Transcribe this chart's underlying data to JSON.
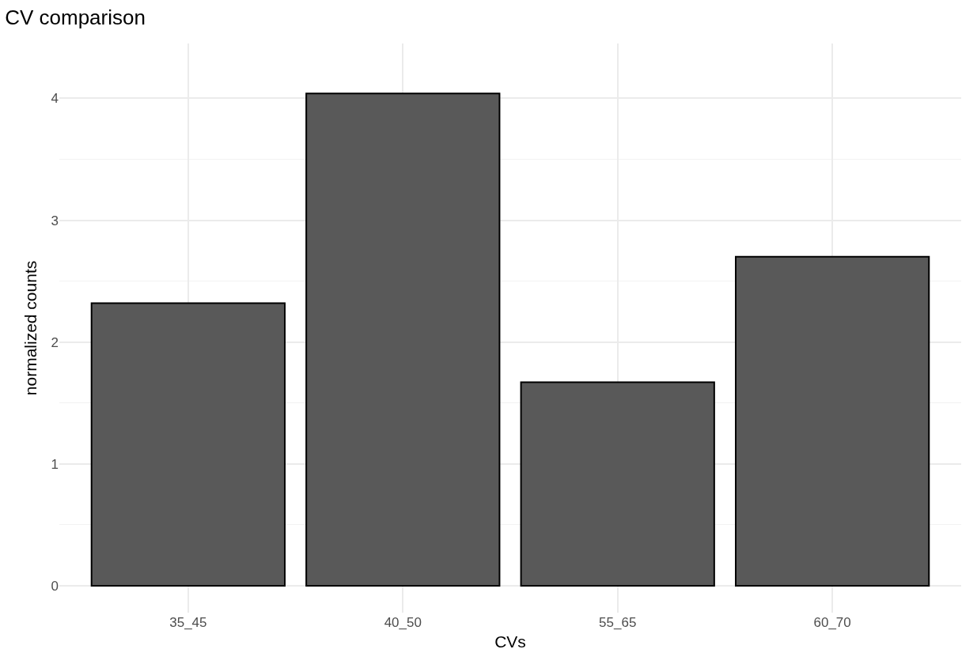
{
  "chart_data": {
    "type": "bar",
    "title": "CV comparison",
    "xlabel": "CVs",
    "ylabel": "normalized counts",
    "categories": [
      "35_45",
      "40_50",
      "55_65",
      "60_70"
    ],
    "values": [
      2.32,
      4.04,
      1.67,
      2.7
    ],
    "color": "#595959",
    "ylim": [
      -0.22,
      4.45
    ],
    "yticks": [
      0,
      1,
      2,
      3,
      4
    ],
    "grid": true
  }
}
